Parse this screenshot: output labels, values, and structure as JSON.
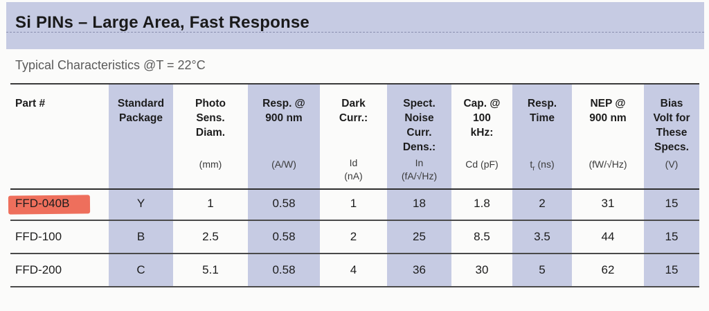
{
  "header": {
    "title": "Si PINs – Large Area, Fast Response",
    "subtitle": "Typical Characteristics @T = 22°C"
  },
  "colors": {
    "band": "#c6cbe3",
    "highlight": "#ee6f5c"
  },
  "table": {
    "columns": [
      {
        "title": "Part #",
        "unit": ""
      },
      {
        "title": "Standard\nPackage",
        "unit": ""
      },
      {
        "title": "Photo\nSens.\nDiam.",
        "unit": "(mm)"
      },
      {
        "title": "Resp. @\n900 nm",
        "unit": "(A/W)"
      },
      {
        "title": "Dark\nCurr.:",
        "unit": "Id\n(nA)"
      },
      {
        "title": "Spect.\nNoise\nCurr.\nDens.:",
        "unit": "In\n(fA/√Hz)"
      },
      {
        "title": "Cap. @\n100\nkHz:",
        "unit": "Cd (pF)"
      },
      {
        "title": "Resp.\nTime",
        "unit": "tr (ns)"
      },
      {
        "title": "NEP @\n900 nm",
        "unit": "(fW/√Hz)"
      },
      {
        "title": "Bias\nVolt for\nThese\nSpecs.",
        "unit": "(V)"
      }
    ],
    "rows": [
      [
        "FFD-040B",
        "Y",
        "1",
        "0.58",
        "1",
        "18",
        "1.8",
        "2",
        "31",
        "15"
      ],
      [
        "FFD-100",
        "B",
        "2.5",
        "0.58",
        "2",
        "25",
        "8.5",
        "3.5",
        "44",
        "15"
      ],
      [
        "FFD-200",
        "C",
        "5.1",
        "0.58",
        "4",
        "36",
        "30",
        "5",
        "62",
        "15"
      ]
    ]
  }
}
